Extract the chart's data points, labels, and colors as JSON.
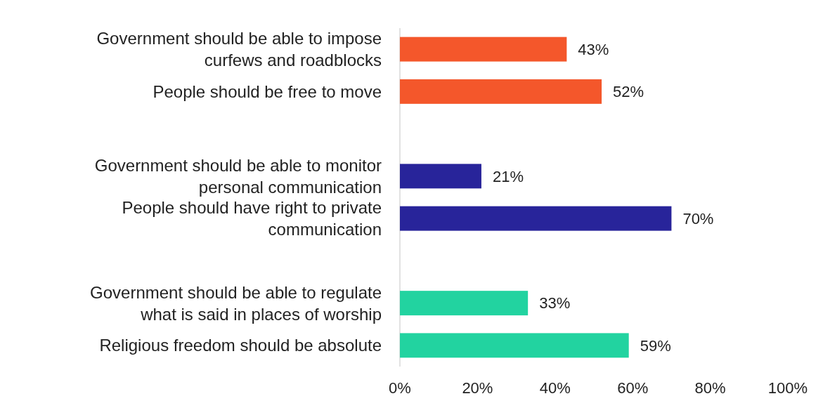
{
  "chart_data": {
    "type": "bar",
    "orientation": "horizontal",
    "categories": [
      "Government should be able to impose curfews and roadblocks",
      "People should be free to move",
      null,
      "Government should be able to monitor personal communication",
      "People should have right to private communication",
      null,
      "Government should be able to regulate what is said in places of worship",
      "Religious freedom should be absolute"
    ],
    "values": [
      43,
      52,
      null,
      21,
      70,
      null,
      33,
      59
    ],
    "value_labels": [
      "43%",
      "52%",
      null,
      "21%",
      "70%",
      null,
      "33%",
      "59%"
    ],
    "colors": [
      "#f4572b",
      "#f4572b",
      null,
      "#28249a",
      "#28249a",
      null,
      "#22d3a0",
      "#22d3a0"
    ],
    "xlim": [
      0,
      100
    ],
    "xticks": [
      {
        "value": 0,
        "label": "0%"
      },
      {
        "value": 20,
        "label": "20%"
      },
      {
        "value": 40,
        "label": "40%"
      },
      {
        "value": 60,
        "label": "60%"
      },
      {
        "value": 80,
        "label": "80%"
      },
      {
        "value": 100,
        "label": "100%"
      }
    ]
  }
}
